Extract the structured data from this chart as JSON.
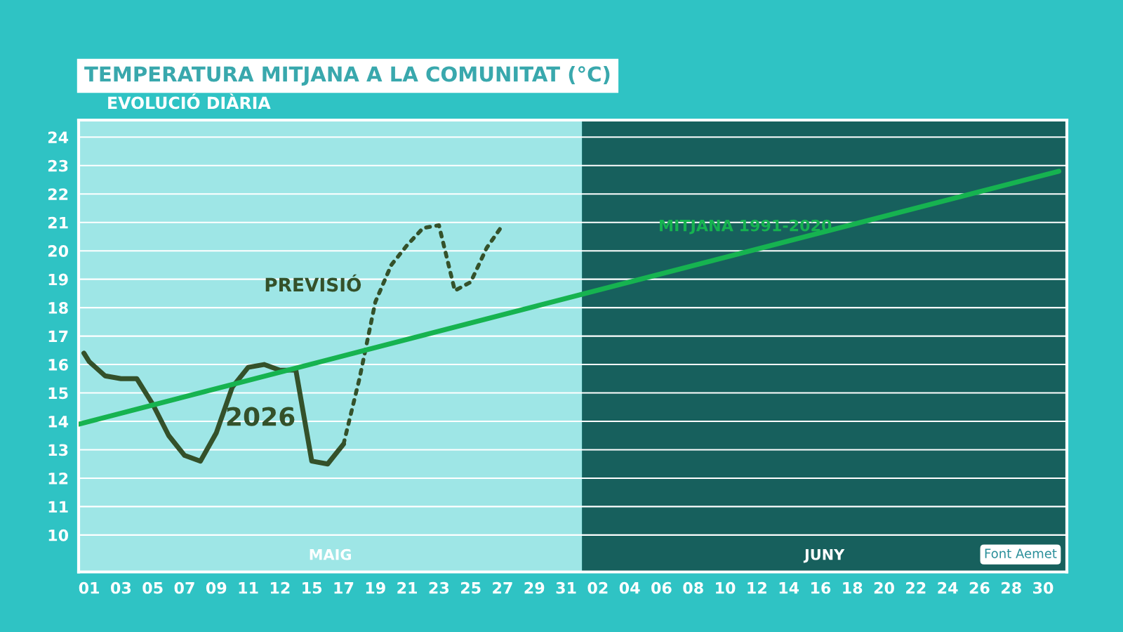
{
  "chart_data": {
    "type": "line",
    "title": "TEMPERATURA MITJANA A LA COMUNITAT (°C)",
    "subtitle": "EVOLUCIÓ DIÀRIA",
    "series": [
      {
        "name": "2026",
        "color": "#34512a",
        "line_style": "solid",
        "x": [
          "2026-04-30T16:00",
          "2026-05-01",
          "2026-05-02",
          "2026-05-03",
          "2026-05-04",
          "2026-05-05",
          "2026-05-06",
          "2026-05-07",
          "2026-05-08",
          "2026-05-09",
          "2026-05-10",
          "2026-05-11",
          "2026-05-12",
          "2026-05-13",
          "2026-05-14",
          "2026-05-15",
          "2026-05-16",
          "2026-05-17"
        ],
        "values": [
          16.4,
          16.1,
          15.6,
          15.5,
          15.5,
          14.6,
          13.5,
          12.8,
          12.6,
          13.6,
          15.2,
          15.9,
          16.0,
          15.8,
          15.8,
          12.6,
          12.5,
          13.2
        ]
      },
      {
        "name": "PREVISIÓ",
        "color": "#34512a",
        "line_style": "dotted",
        "x": [
          "2026-05-17",
          "2026-05-18",
          "2026-05-19",
          "2026-05-20",
          "2026-05-21",
          "2026-05-22",
          "2026-05-23",
          "2026-05-24",
          "2026-05-25",
          "2026-05-26",
          "2026-05-27"
        ],
        "values": [
          13.2,
          15.5,
          18.2,
          19.5,
          20.2,
          20.8,
          20.9,
          18.6,
          18.9,
          20.1,
          20.9
        ]
      },
      {
        "name": "MITJANA 1991-2020",
        "color": "#16b350",
        "line_style": "solid",
        "x": [
          "2026-04-30T08:00",
          "2026-07-01T00:00"
        ],
        "values": [
          13.9,
          22.8
        ]
      }
    ],
    "xlim": [
      "2026-04-30T08:00",
      "2026-07-01T12:00"
    ],
    "xticks": [
      {
        "value": "2026-05-01",
        "label": "01"
      },
      {
        "value": "2026-05-03",
        "label": "03"
      },
      {
        "value": "2026-05-05",
        "label": "05"
      },
      {
        "value": "2026-05-07",
        "label": "07"
      },
      {
        "value": "2026-05-09",
        "label": "09"
      },
      {
        "value": "2026-05-11",
        "label": "11"
      },
      {
        "value": "2026-05-13",
        "label": "12"
      },
      {
        "value": "2026-05-15",
        "label": "15"
      },
      {
        "value": "2026-05-17",
        "label": "17"
      },
      {
        "value": "2026-05-19",
        "label": "19"
      },
      {
        "value": "2026-05-21",
        "label": "21"
      },
      {
        "value": "2026-05-23",
        "label": "23"
      },
      {
        "value": "2026-05-25",
        "label": "25"
      },
      {
        "value": "2026-05-27",
        "label": "27"
      },
      {
        "value": "2026-05-29",
        "label": "29"
      },
      {
        "value": "2026-05-31",
        "label": "31"
      },
      {
        "value": "2026-06-02",
        "label": "02"
      },
      {
        "value": "2026-06-04",
        "label": "04"
      },
      {
        "value": "2026-06-06",
        "label": "06"
      },
      {
        "value": "2026-06-08",
        "label": "08"
      },
      {
        "value": "2026-06-10",
        "label": "10"
      },
      {
        "value": "2026-06-12",
        "label": "12"
      },
      {
        "value": "2026-06-14",
        "label": "14"
      },
      {
        "value": "2026-06-16",
        "label": "16"
      },
      {
        "value": "2026-06-18",
        "label": "18"
      },
      {
        "value": "2026-06-20",
        "label": "20"
      },
      {
        "value": "2026-06-22",
        "label": "22"
      },
      {
        "value": "2026-06-24",
        "label": "24"
      },
      {
        "value": "2026-06-26",
        "label": "26"
      },
      {
        "value": "2026-06-28",
        "label": "28"
      },
      {
        "value": "2026-06-30",
        "label": "30"
      }
    ],
    "ylim": [
      8.7,
      24.6
    ],
    "yticks": [
      10,
      11,
      12,
      13,
      14,
      15,
      16,
      17,
      18,
      19,
      20,
      21,
      22,
      23,
      24
    ],
    "grid": "y",
    "bands": [
      {
        "axis": "x",
        "from": "2026-04-30T08:00",
        "to": "2026-06-01",
        "label": "MAIG",
        "color": "#9ee6e6"
      },
      {
        "axis": "x",
        "from": "2026-06-01",
        "to": "2026-07-01T12:00",
        "label": "JUNY",
        "color": "#17605d"
      }
    ],
    "annotations": [
      "Font Aemet"
    ]
  }
}
